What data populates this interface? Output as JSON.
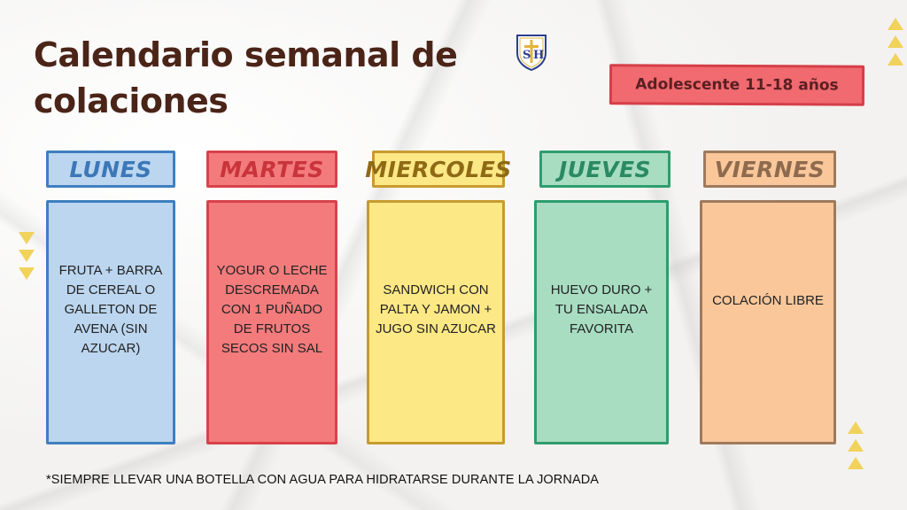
{
  "title": "Calendario semanal de colaciones",
  "logo": {
    "letters": "SJH",
    "icon": "school-crest-icon"
  },
  "age_badge": "Adolescente 11-18 años",
  "days": [
    {
      "label": "LUNES",
      "text": "FRUTA + BARRA DE CEREAL O GALLETON DE AVENA (SIN AZUCAR)",
      "color": "#bcd6ef",
      "border": "#3f7fc0",
      "text_color": "#3c78b8"
    },
    {
      "label": "MARTES",
      "text": "YOGUR O LECHE DESCREMADA CON 1 PUÑADO DE FRUTOS SECOS SIN SAL",
      "color": "#f37b7c",
      "border": "#d8424a",
      "text_color": "#c9343b"
    },
    {
      "label": "MIERCOLES",
      "text": "SANDWICH CON PALTA Y JAMON + JUGO SIN AZUCAR",
      "color": "#fde886",
      "border": "#c79b2f",
      "text_color": "#8f6a14"
    },
    {
      "label": "JUEVES",
      "text": "HUEVO DURO + TU ENSALADA FAVORITA",
      "color": "#a8ddc2",
      "border": "#2f9d6e",
      "text_color": "#2a8a62"
    },
    {
      "label": "VIERNES",
      "text": "COLACIÓN LIBRE",
      "color": "#f9c79a",
      "border": "#9e7a5c",
      "text_color": "#8e6a4e"
    }
  ],
  "footnote": "*SIEMPRE LLEVAR UNA BOTELLA CON AGUA PARA HIDRATARSE DURANTE LA JORNADA",
  "decor": {
    "triangle_color": "#f1d25a",
    "title_color": "#4b2418"
  }
}
